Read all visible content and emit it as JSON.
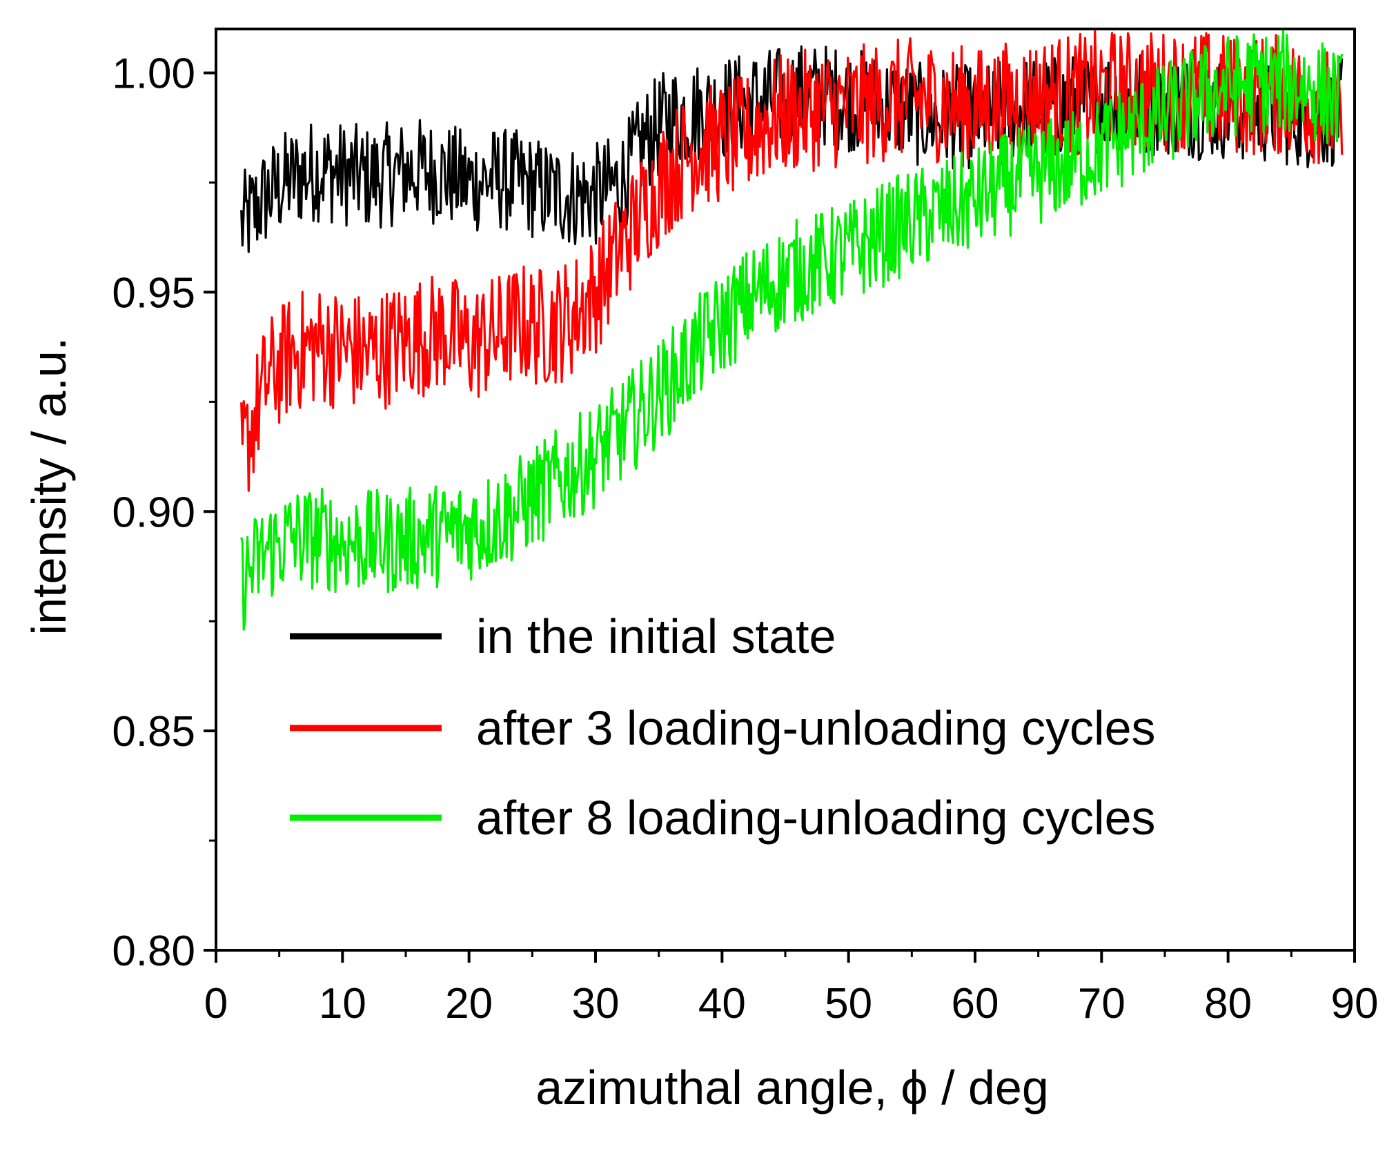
{
  "chart_data": {
    "type": "line",
    "title": "",
    "xlabel": "azimuthal angle, ϕ / deg",
    "ylabel": "intensity / a.u.",
    "xlim": [
      0,
      90
    ],
    "ylim": [
      0.8,
      1.01
    ],
    "x_ticks": [
      0,
      10,
      20,
      30,
      40,
      50,
      60,
      70,
      80,
      90
    ],
    "x_tick_labels": [
      "0",
      "10",
      "20",
      "30",
      "40",
      "50",
      "60",
      "70",
      "80",
      "90"
    ],
    "y_ticks": [
      0.8,
      0.85,
      0.9,
      0.95,
      1.0
    ],
    "y_tick_labels": [
      "0.80",
      "0.85",
      "0.90",
      "0.95",
      "1.00"
    ],
    "grid": false,
    "legend_position": "center",
    "x": [
      2,
      4,
      6,
      8,
      10,
      12,
      14,
      16,
      18,
      20,
      22,
      24,
      26,
      28,
      30,
      32,
      34,
      36,
      38,
      40,
      42,
      44,
      46,
      48,
      50,
      52,
      54,
      56,
      58,
      60,
      62,
      64,
      66,
      68,
      70,
      72,
      74,
      76,
      78,
      80,
      82,
      84,
      86,
      88,
      89
    ],
    "series": [
      {
        "name": "in the initial state",
        "color": "#000000",
        "noise_amplitude": 0.012,
        "values": [
          0.965,
          0.972,
          0.976,
          0.978,
          0.977,
          0.976,
          0.977,
          0.978,
          0.977,
          0.975,
          0.976,
          0.975,
          0.973,
          0.972,
          0.972,
          0.975,
          0.985,
          0.99,
          0.991,
          0.992,
          0.993,
          0.994,
          0.995,
          0.995,
          0.994,
          0.993,
          0.992,
          0.99,
          0.99,
          0.99,
          0.991,
          0.992,
          0.992,
          0.993,
          0.994,
          0.994,
          0.993,
          0.993,
          0.992,
          0.992,
          0.991,
          0.991,
          0.99,
          0.99,
          0.992
        ]
      },
      {
        "name": "after 3 loading-unloading cycles",
        "color": "#ff0000",
        "noise_amplitude": 0.014,
        "values": [
          0.912,
          0.93,
          0.936,
          0.938,
          0.937,
          0.936,
          0.938,
          0.94,
          0.941,
          0.938,
          0.94,
          0.943,
          0.942,
          0.944,
          0.95,
          0.96,
          0.97,
          0.978,
          0.983,
          0.984,
          0.986,
          0.99,
          0.991,
          0.992,
          0.992,
          0.993,
          0.994,
          0.994,
          0.993,
          0.992,
          0.993,
          0.994,
          0.995,
          0.995,
          0.996,
          0.996,
          0.996,
          0.996,
          0.996,
          0.995,
          0.995,
          0.995,
          0.994,
          0.992,
          0.988
        ]
      },
      {
        "name": "after 8 loading-unloading cycles",
        "color": "#00ee00",
        "noise_amplitude": 0.012,
        "values": [
          0.884,
          0.891,
          0.894,
          0.894,
          0.893,
          0.893,
          0.893,
          0.894,
          0.895,
          0.896,
          0.898,
          0.901,
          0.905,
          0.909,
          0.913,
          0.918,
          0.924,
          0.93,
          0.937,
          0.943,
          0.948,
          0.952,
          0.955,
          0.957,
          0.959,
          0.962,
          0.965,
          0.967,
          0.969,
          0.971,
          0.974,
          0.976,
          0.978,
          0.98,
          0.983,
          0.986,
          0.989,
          0.992,
          0.995,
          0.997,
          0.998,
          0.998,
          0.997,
          0.995,
          0.993
        ]
      }
    ]
  }
}
